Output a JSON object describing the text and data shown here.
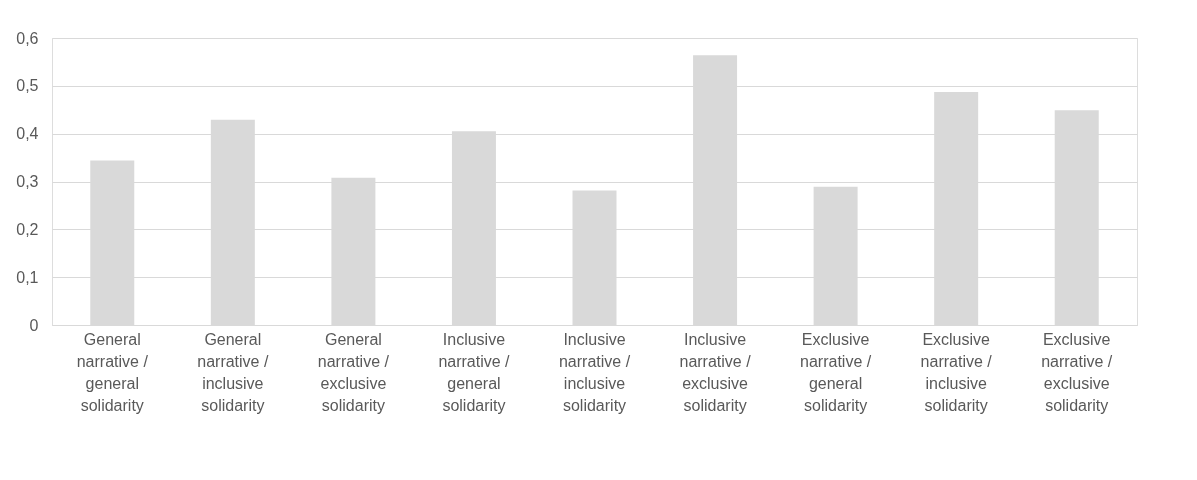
{
  "chart_data": {
    "type": "bar",
    "categories": [
      "General narrative / general solidarity",
      "General narrative / inclusive solidarity",
      "General narrative / exclusive solidarity",
      "Inclusive narrative / general solidarity",
      "Inclusive narrative / inclusive solidarity",
      "Inclusive narrative / exclusive solidarity",
      "Exclusive narrative / general solidarity",
      "Exclusive narrative / inclusive solidarity",
      "Exclusive narrative / exclusive solidarity"
    ],
    "values": [
      0.344,
      0.429,
      0.308,
      0.405,
      0.281,
      0.564,
      0.289,
      0.487,
      0.449
    ],
    "color": "#d9d9d9",
    "ylim": [
      0,
      0.6
    ],
    "yticks": [
      {
        "value": 0,
        "label": "0"
      },
      {
        "value": 0.1,
        "label": "0,1"
      },
      {
        "value": 0.2,
        "label": "0,2"
      },
      {
        "value": 0.3,
        "label": "0,3"
      },
      {
        "value": 0.4,
        "label": "0,4"
      },
      {
        "value": 0.5,
        "label": "0,5"
      },
      {
        "value": 0.6,
        "label": "0,6"
      }
    ],
    "grid": "y"
  }
}
